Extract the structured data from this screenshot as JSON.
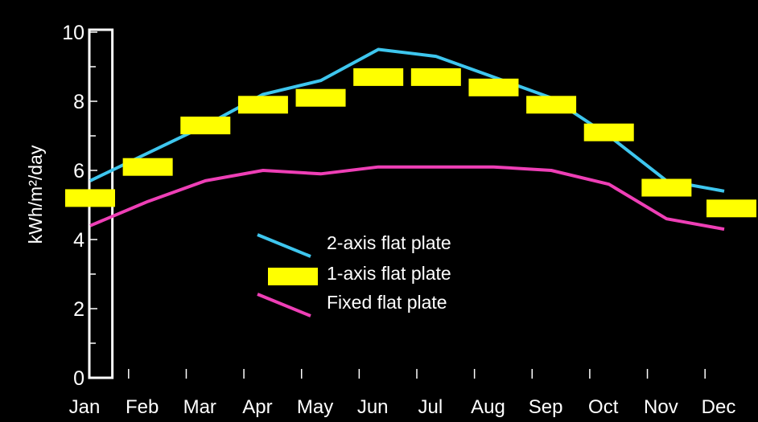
{
  "colors": {
    "background": "#000000",
    "axis": "#ffffff",
    "two_axis": "#3ec6ee",
    "one_axis": "#ffff00",
    "fixed": "#ee3fb6",
    "highlight_box": "#ffffff"
  },
  "chart_data": {
    "type": "line",
    "title": "",
    "xlabel": "",
    "ylabel": "kWh/m²/day",
    "ylim": [
      0,
      10
    ],
    "yticks": [
      "0",
      "2",
      "4",
      "6",
      "8",
      "10"
    ],
    "categories": [
      "Jan",
      "Feb",
      "Mar",
      "Apr",
      "May",
      "Jun",
      "Jul",
      "Aug",
      "Sep",
      "Oct",
      "Nov",
      "Dec"
    ],
    "series": [
      {
        "name": "2-axis flat plate",
        "style": "line",
        "color": "#3ec6ee",
        "values": [
          5.7,
          6.5,
          7.3,
          8.2,
          8.6,
          9.5,
          9.3,
          8.7,
          8.1,
          7.0,
          5.7,
          5.4
        ]
      },
      {
        "name": "1-axis flat plate",
        "style": "bar-marker",
        "color": "#ffff00",
        "values": [
          5.2,
          6.1,
          7.3,
          7.9,
          8.1,
          8.7,
          8.7,
          8.4,
          7.9,
          7.1,
          5.5,
          4.9
        ]
      },
      {
        "name": "Fixed flat plate",
        "style": "line",
        "color": "#ee3fb6",
        "values": [
          4.4,
          5.1,
          5.7,
          6.0,
          5.9,
          6.1,
          6.1,
          6.1,
          6.0,
          5.6,
          4.6,
          4.3
        ]
      }
    ],
    "highlight": {
      "from": "Jan",
      "to": "Feb",
      "shape": "rectangle"
    },
    "legend_position": "center",
    "grid": false
  }
}
